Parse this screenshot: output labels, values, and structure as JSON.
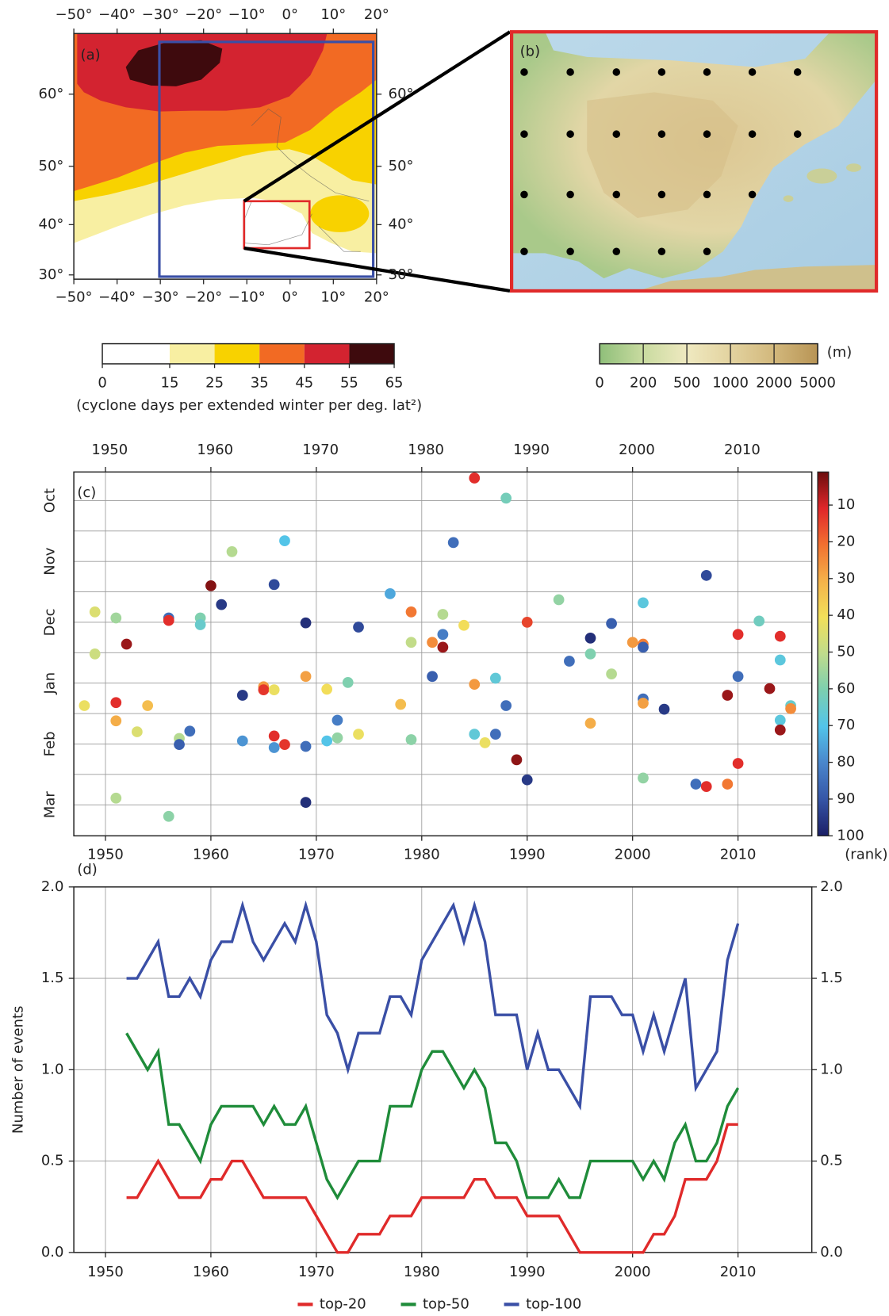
{
  "chart_data": [
    {
      "type": "map",
      "panel_label": "(a)",
      "projection": "mercator",
      "xlim": [
        -50,
        20
      ],
      "ylim": [
        29.1,
        66.6
      ],
      "xticks": [
        {
          "value": -50,
          "label": "−50°"
        },
        {
          "value": -40,
          "label": "−40°"
        },
        {
          "value": -30,
          "label": "−30°"
        },
        {
          "value": -20,
          "label": "−20°"
        },
        {
          "value": -10,
          "label": "−10°"
        },
        {
          "value": 0,
          "label": "0°"
        },
        {
          "value": 10,
          "label": "10°"
        },
        {
          "value": 20,
          "label": "20°"
        }
      ],
      "yticks": [
        {
          "value": 30,
          "label": "30°"
        },
        {
          "value": 40,
          "label": "40°"
        },
        {
          "value": 50,
          "label": "50°"
        },
        {
          "value": 60,
          "label": "60°"
        }
      ],
      "colorbar": {
        "bounds": [
          0,
          15,
          25,
          35,
          45,
          55,
          65
        ],
        "colors": [
          "#ffffff",
          "#f8efa2",
          "#f8d200",
          "#f26a23",
          "#d32330",
          "#3e0a0d"
        ],
        "label": "(cyclone days per extended winter per deg. lat²)"
      }
    },
    {
      "type": "map",
      "panel_label": "(b)",
      "colorbar": {
        "ticks": [
          0,
          200,
          500,
          1000,
          2000,
          5000
        ],
        "colors": [
          "#8fbf7a",
          "#c9dba0",
          "#efe9c0",
          "#e3d3a0",
          "#d2b87c",
          "#b89455"
        ],
        "unit": "(m)"
      }
    },
    {
      "type": "scatter",
      "panel_label": "(c)",
      "grid": true,
      "y_inverted": true,
      "xlim": [
        1947,
        2017
      ],
      "xticks": [
        1950,
        1960,
        1970,
        1980,
        1990,
        2000,
        2010
      ],
      "ylim": [
        -0.47,
        5.51
      ],
      "yticks": [
        {
          "value": 0,
          "label": "Oct"
        },
        {
          "value": 1,
          "label": "Nov"
        },
        {
          "value": 2,
          "label": "Dec"
        },
        {
          "value": 3,
          "label": "Jan"
        },
        {
          "value": 4,
          "label": "Feb"
        },
        {
          "value": 5,
          "label": "Mar"
        }
      ],
      "yminor": [
        0.5,
        1.5,
        2.5,
        3.5,
        4.5
      ],
      "x": [
        1985,
        1988,
        1967,
        1983,
        1962,
        2007,
        1966,
        1960,
        1977,
        1961,
        1993,
        1949,
        1951,
        1956,
        1956,
        1959,
        1959,
        1979,
        1982,
        2001,
        1969,
        1974,
        1984,
        1990,
        1998,
        2012,
        1949,
        1952,
        1979,
        1981,
        1982,
        1982,
        1996,
        1996,
        2000,
        2001,
        2001,
        2010,
        2014,
        1994,
        1998,
        1969,
        1973,
        1981,
        1987,
        2010,
        2014,
        1965,
        1965,
        1966,
        1971,
        1985,
        1963,
        2009,
        2013,
        1948,
        1951,
        1954,
        1978,
        1988,
        2001,
        2001,
        2003,
        2015,
        2015,
        1951,
        1972,
        1996,
        2014,
        2014,
        1953,
        1958,
        1957,
        1957,
        1963,
        1966,
        1966,
        1967,
        1969,
        1971,
        1972,
        1974,
        1979,
        1985,
        1986,
        1987,
        1989,
        1990,
        2001,
        2006,
        2007,
        2009,
        2010,
        1951,
        1956,
        1969
      ],
      "values": [
        -0.37,
        -0.04,
        0.66,
        0.69,
        0.84,
        1.23,
        1.38,
        1.4,
        1.53,
        1.71,
        1.63,
        1.83,
        1.93,
        1.93,
        1.97,
        1.93,
        2.04,
        1.83,
        1.87,
        1.68,
        2.01,
        2.08,
        2.05,
        2.0,
        2.02,
        1.98,
        2.52,
        2.36,
        2.33,
        2.33,
        2.2,
        2.41,
        2.26,
        2.52,
        2.33,
        2.36,
        2.41,
        2.2,
        2.23,
        2.64,
        2.85,
        2.89,
        2.99,
        2.89,
        2.92,
        2.89,
        2.62,
        3.06,
        3.11,
        3.11,
        3.1,
        3.02,
        3.2,
        3.2,
        3.09,
        3.37,
        3.32,
        3.37,
        3.35,
        3.37,
        3.26,
        3.33,
        3.43,
        3.37,
        3.42,
        3.62,
        3.61,
        3.66,
        3.61,
        3.77,
        3.8,
        3.79,
        3.91,
        4.01,
        3.95,
        3.87,
        4.06,
        4.01,
        4.04,
        3.95,
        3.9,
        3.84,
        3.93,
        3.84,
        3.98,
        3.84,
        4.26,
        4.59,
        4.56,
        4.66,
        4.7,
        4.66,
        4.32,
        4.89,
        5.19,
        4.96
      ],
      "ranks": [
        12,
        62,
        70,
        85,
        52,
        92,
        92,
        3,
        75,
        95,
        57,
        45,
        55,
        85,
        12,
        60,
        65,
        22,
        52,
        68,
        97,
        92,
        40,
        15,
        88,
        63,
        48,
        5,
        50,
        25,
        82,
        5,
        97,
        60,
        27,
        23,
        88,
        12,
        12,
        85,
        52,
        28,
        60,
        88,
        67,
        85,
        68,
        27,
        13,
        42,
        40,
        27,
        95,
        5,
        5,
        42,
        12,
        33,
        33,
        85,
        85,
        28,
        95,
        65,
        25,
        30,
        82,
        30,
        68,
        5,
        45,
        85,
        52,
        88,
        78,
        12,
        78,
        13,
        85,
        70,
        57,
        42,
        58,
        67,
        42,
        85,
        4,
        95,
        57,
        85,
        12,
        22,
        12,
        52,
        58,
        97
      ],
      "colorbar": {
        "clim": [
          1,
          100
        ],
        "ticks": [
          10,
          20,
          30,
          40,
          50,
          60,
          70,
          80,
          90,
          100
        ],
        "colormap": [
          "#6b0d0d",
          "#e0262a",
          "#f27030",
          "#f4b24a",
          "#f2e05a",
          "#bfdc8c",
          "#7ccfb0",
          "#52c4ea",
          "#4a86cc",
          "#3555a6",
          "#1b1e66"
        ],
        "label": "(rank)"
      }
    },
    {
      "type": "line",
      "panel_label": "(d)",
      "grid": true,
      "legend": "bottom",
      "ylabel": "Number of events",
      "xlim": [
        1947,
        2017
      ],
      "xticks": [
        1950,
        1960,
        1970,
        1980,
        1990,
        2000,
        2010
      ],
      "ylim": [
        0,
        2
      ],
      "yticks": [
        {
          "value": 0,
          "label": "0.0"
        },
        {
          "value": 0.5,
          "label": "0.5"
        },
        {
          "value": 1,
          "label": "1.0"
        },
        {
          "value": 1.5,
          "label": "1.5"
        },
        {
          "value": 2,
          "label": "2.0"
        }
      ],
      "x": [
        1952,
        1953,
        1954,
        1955,
        1956,
        1957,
        1958,
        1959,
        1960,
        1961,
        1962,
        1963,
        1964,
        1965,
        1966,
        1967,
        1968,
        1969,
        1970,
        1971,
        1972,
        1973,
        1974,
        1975,
        1976,
        1977,
        1978,
        1979,
        1980,
        1981,
        1982,
        1983,
        1984,
        1985,
        1986,
        1987,
        1988,
        1989,
        1990,
        1991,
        1992,
        1993,
        1994,
        1995,
        1996,
        1997,
        1998,
        1999,
        2000,
        2001,
        2002,
        2003,
        2004,
        2005,
        2006,
        2007,
        2008,
        2009,
        2010
      ],
      "series": [
        {
          "name": "top-20",
          "color": "#e02a2a",
          "values": [
            0.3,
            0.3,
            0.4,
            0.5,
            0.4,
            0.3,
            0.3,
            0.3,
            0.4,
            0.4,
            0.5,
            0.5,
            0.4,
            0.3,
            0.3,
            0.3,
            0.3,
            0.3,
            0.2,
            0.1,
            0.0,
            0.0,
            0.1,
            0.1,
            0.1,
            0.2,
            0.2,
            0.2,
            0.3,
            0.3,
            0.3,
            0.3,
            0.3,
            0.4,
            0.4,
            0.3,
            0.3,
            0.3,
            0.2,
            0.2,
            0.2,
            0.2,
            0.1,
            0.0,
            0.0,
            0.0,
            0.0,
            0.0,
            0.0,
            0.0,
            0.1,
            0.1,
            0.2,
            0.4,
            0.4,
            0.4,
            0.5,
            0.7,
            0.7
          ]
        },
        {
          "name": "top-50",
          "color": "#1f8c3a",
          "values": [
            1.2,
            1.1,
            1.0,
            1.1,
            0.7,
            0.7,
            0.6,
            0.5,
            0.7,
            0.8,
            0.8,
            0.8,
            0.8,
            0.7,
            0.8,
            0.7,
            0.7,
            0.8,
            0.6,
            0.4,
            0.3,
            0.4,
            0.5,
            0.5,
            0.5,
            0.8,
            0.8,
            0.8,
            1.0,
            1.1,
            1.1,
            1.0,
            0.9,
            1.0,
            0.9,
            0.6,
            0.6,
            0.5,
            0.3,
            0.3,
            0.3,
            0.4,
            0.3,
            0.3,
            0.5,
            0.5,
            0.5,
            0.5,
            0.5,
            0.4,
            0.5,
            0.4,
            0.6,
            0.7,
            0.5,
            0.5,
            0.6,
            0.8,
            0.9
          ]
        },
        {
          "name": "top-100",
          "color": "#3a4fa6",
          "values": [
            1.5,
            1.5,
            1.6,
            1.7,
            1.4,
            1.4,
            1.5,
            1.4,
            1.6,
            1.7,
            1.7,
            1.9,
            1.7,
            1.6,
            1.7,
            1.8,
            1.7,
            1.9,
            1.7,
            1.3,
            1.2,
            1.0,
            1.2,
            1.2,
            1.2,
            1.4,
            1.4,
            1.3,
            1.6,
            1.7,
            1.8,
            1.9,
            1.7,
            1.9,
            1.7,
            1.3,
            1.3,
            1.3,
            1.0,
            1.2,
            1.0,
            1.0,
            0.9,
            0.8,
            1.4,
            1.4,
            1.4,
            1.3,
            1.3,
            1.1,
            1.3,
            1.1,
            1.3,
            1.5,
            0.9,
            1.0,
            1.1,
            1.6,
            1.8
          ]
        }
      ]
    }
  ]
}
